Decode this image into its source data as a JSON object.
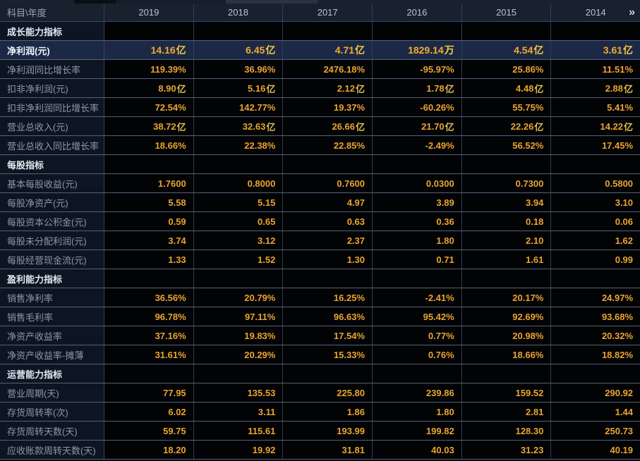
{
  "header": {
    "corner_label": "科目\\年度",
    "years": [
      "2019",
      "2018",
      "2017",
      "2016",
      "2015",
      "2014"
    ],
    "more_label": "»"
  },
  "colors": {
    "value_gold": "#e9a531",
    "unit_gold": "#e0bd55",
    "highlight_row_bg": "#1c2946",
    "label_column_bg": "#0d1523",
    "header_bg": "#19212f",
    "grid_line": "#55617a",
    "section_text": "#e4eaf1",
    "label_text": "#8d98a8"
  },
  "rows": [
    {
      "type": "section",
      "label": "成长能力指标"
    },
    {
      "type": "data",
      "highlight": true,
      "label": "净利润(元)",
      "values": [
        {
          "n": "14.16",
          "u": "亿"
        },
        {
          "n": "6.45",
          "u": "亿"
        },
        {
          "n": "4.71",
          "u": "亿"
        },
        {
          "n": "1829.14",
          "u": "万"
        },
        {
          "n": "4.54",
          "u": "亿"
        },
        {
          "n": "3.61",
          "u": "亿"
        }
      ]
    },
    {
      "type": "data",
      "label": "净利润同比增长率",
      "values": [
        "119.39%",
        "36.96%",
        "2476.18%",
        "-95.97%",
        "25.86%",
        "11.51%"
      ]
    },
    {
      "type": "data",
      "label": "扣非净利润(元)",
      "values": [
        {
          "n": "8.90",
          "u": "亿"
        },
        {
          "n": "5.16",
          "u": "亿"
        },
        {
          "n": "2.12",
          "u": "亿"
        },
        {
          "n": "1.78",
          "u": "亿"
        },
        {
          "n": "4.48",
          "u": "亿"
        },
        {
          "n": "2.88",
          "u": "亿"
        }
      ]
    },
    {
      "type": "data",
      "label": "扣非净利润同比增长率",
      "values": [
        "72.54%",
        "142.77%",
        "19.37%",
        "-60.26%",
        "55.75%",
        "5.41%"
      ]
    },
    {
      "type": "data",
      "label": "营业总收入(元)",
      "values": [
        {
          "n": "38.72",
          "u": "亿"
        },
        {
          "n": "32.63",
          "u": "亿"
        },
        {
          "n": "26.66",
          "u": "亿"
        },
        {
          "n": "21.70",
          "u": "亿"
        },
        {
          "n": "22.26",
          "u": "亿"
        },
        {
          "n": "14.22",
          "u": "亿"
        }
      ]
    },
    {
      "type": "data",
      "label": "营业总收入同比增长率",
      "values": [
        "18.66%",
        "22.38%",
        "22.85%",
        "-2.49%",
        "56.52%",
        "17.45%"
      ]
    },
    {
      "type": "section",
      "label": "每股指标"
    },
    {
      "type": "data",
      "label": "基本每股收益(元)",
      "values": [
        "1.7600",
        "0.8000",
        "0.7600",
        "0.0300",
        "0.7300",
        "0.5800"
      ]
    },
    {
      "type": "data",
      "label": "每股净资产(元)",
      "values": [
        "5.58",
        "5.15",
        "4.97",
        "3.89",
        "3.94",
        "3.10"
      ]
    },
    {
      "type": "data",
      "label": "每股资本公积金(元)",
      "values": [
        "0.59",
        "0.65",
        "0.63",
        "0.36",
        "0.18",
        "0.06"
      ]
    },
    {
      "type": "data",
      "label": "每股未分配利润(元)",
      "values": [
        "3.74",
        "3.12",
        "2.37",
        "1.80",
        "2.10",
        "1.62"
      ]
    },
    {
      "type": "data",
      "label": "每股经营现金流(元)",
      "values": [
        "1.33",
        "1.52",
        "1.30",
        "0.71",
        "1.61",
        "0.99"
      ]
    },
    {
      "type": "section",
      "label": "盈利能力指标"
    },
    {
      "type": "data",
      "label": "销售净利率",
      "values": [
        "36.56%",
        "20.79%",
        "16.25%",
        "-2.41%",
        "20.17%",
        "24.97%"
      ]
    },
    {
      "type": "data",
      "label": "销售毛利率",
      "values": [
        "96.78%",
        "97.11%",
        "96.63%",
        "95.42%",
        "92.69%",
        "93.68%"
      ]
    },
    {
      "type": "data",
      "label": "净资产收益率",
      "values": [
        "37.16%",
        "19.83%",
        "17.54%",
        "0.77%",
        "20.98%",
        "20.32%"
      ]
    },
    {
      "type": "data",
      "label": "净资产收益率-摊薄",
      "values": [
        "31.61%",
        "20.29%",
        "15.33%",
        "0.76%",
        "18.66%",
        "18.82%"
      ]
    },
    {
      "type": "section",
      "label": "运营能力指标"
    },
    {
      "type": "data",
      "label": "营业周期(天)",
      "values": [
        "77.95",
        "135.53",
        "225.80",
        "239.86",
        "159.52",
        "290.92"
      ]
    },
    {
      "type": "data",
      "label": "存货周转率(次)",
      "values": [
        "6.02",
        "3.11",
        "1.86",
        "1.80",
        "2.81",
        "1.44"
      ]
    },
    {
      "type": "data",
      "label": "存货周转天数(天)",
      "values": [
        "59.75",
        "115.61",
        "193.99",
        "199.82",
        "128.30",
        "250.73"
      ]
    },
    {
      "type": "data",
      "label": "应收账款周转天数(天)",
      "values": [
        "18.20",
        "19.92",
        "31.81",
        "40.03",
        "31.23",
        "40.19"
      ]
    }
  ]
}
